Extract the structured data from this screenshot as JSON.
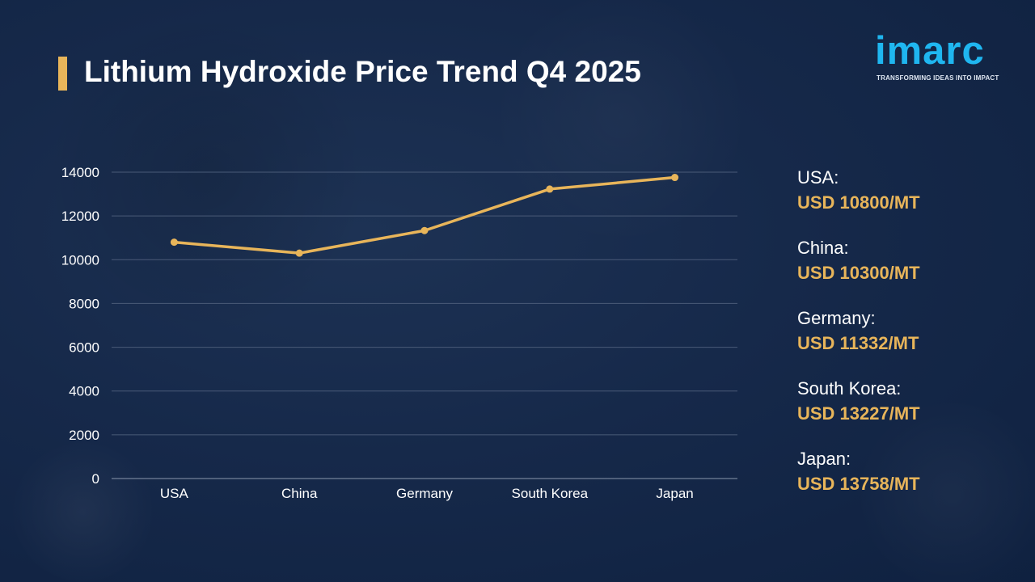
{
  "title": "Lithium Hydroxide Price Trend Q4 2025",
  "logo": {
    "text": "imarc",
    "tagline": "TRANSFORMING IDEAS INTO IMPACT"
  },
  "colors": {
    "accent": "#e8b55a",
    "logo": "#1fb6f0",
    "background": "#16294a",
    "grid": "#4a5b78"
  },
  "chart_data": {
    "type": "line",
    "categories": [
      "USA",
      "China",
      "Germany",
      "South Korea",
      "Japan"
    ],
    "values": [
      10800,
      10300,
      11332,
      13227,
      13758
    ],
    "ylim": [
      0,
      14000
    ],
    "yticks": [
      0,
      2000,
      4000,
      6000,
      8000,
      10000,
      12000,
      14000
    ],
    "grid": true
  },
  "prices": [
    {
      "country": "USA:",
      "price": "USD 10800/MT"
    },
    {
      "country": "China:",
      "price": "USD 10300/MT"
    },
    {
      "country": "Germany:",
      "price": "USD 11332/MT"
    },
    {
      "country": "South Korea:",
      "price": "USD 13227/MT"
    },
    {
      "country": "Japan:",
      "price": "USD 13758/MT"
    }
  ]
}
